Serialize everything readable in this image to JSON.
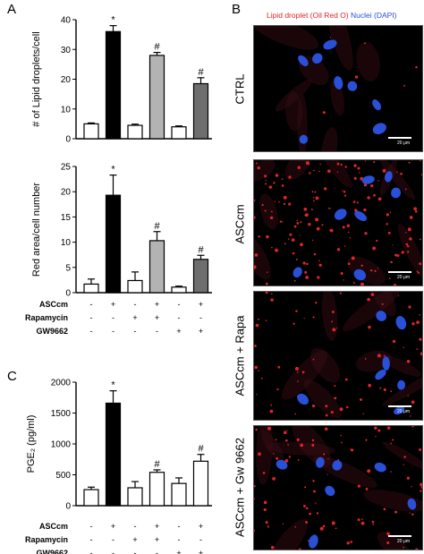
{
  "panels": {
    "a": "A",
    "b": "B",
    "c": "C"
  },
  "legend": {
    "lipid": "Lipid droplet  (Oil Red O)",
    "nuclei": "Nuclei (DAPI)",
    "lipid_color": "#e0242a",
    "nuclei_color": "#2a4fd8"
  },
  "micrographs": [
    {
      "label": "CTRL",
      "scale": "20 μm"
    },
    {
      "label": "ASCcm",
      "scale": "20 μm"
    },
    {
      "label": "ASCcm + Rapa",
      "scale": "20 μm"
    },
    {
      "label": "ASCcm + Gw 9662",
      "scale": "20 μm"
    }
  ],
  "treatments": {
    "rows": [
      {
        "name": "ASCcm",
        "signs": [
          "-",
          "+",
          "-",
          "+",
          "-",
          "+"
        ]
      },
      {
        "name": "Rapamycin",
        "signs": [
          "-",
          "-",
          "+",
          "+",
          "-",
          "-"
        ]
      },
      {
        "name": "GW9662",
        "signs": [
          "-",
          "-",
          "-",
          "-",
          "+",
          "+"
        ]
      }
    ]
  },
  "chart_data": [
    {
      "type": "bar",
      "ylabel": "# of Lipid droplets/cell",
      "ylim": [
        0,
        40
      ],
      "yticks": [
        0,
        10,
        20,
        30,
        40
      ],
      "values": [
        5,
        36,
        4.5,
        28,
        4,
        18.5
      ],
      "errors": [
        0.3,
        2,
        0.4,
        1,
        0.3,
        2
      ],
      "fills": [
        "#ffffff",
        "#000000",
        "#ffffff",
        "#b3b3b3",
        "#ffffff",
        "#6e6e6e"
      ],
      "marks": [
        "",
        "*",
        "",
        "#",
        "",
        "#"
      ]
    },
    {
      "type": "bar",
      "ylabel": "Red area/cell number",
      "ylim": [
        0,
        25
      ],
      "yticks": [
        0,
        5,
        10,
        15,
        20,
        25
      ],
      "values": [
        1.7,
        19.3,
        2.4,
        10.3,
        1.1,
        6.6
      ],
      "errors": [
        1,
        4,
        1.7,
        1.8,
        0.2,
        0.8
      ],
      "fills": [
        "#ffffff",
        "#000000",
        "#ffffff",
        "#b3b3b3",
        "#ffffff",
        "#6e6e6e"
      ],
      "marks": [
        "",
        "*",
        "",
        "#",
        "",
        "#"
      ]
    },
    {
      "type": "bar",
      "ylabel": "PGE₂ (pg/ml)",
      "ylim": [
        0,
        2000
      ],
      "yticks": [
        0,
        500,
        1000,
        1500,
        2000
      ],
      "values": [
        260,
        1660,
        290,
        540,
        360,
        720
      ],
      "errors": [
        40,
        200,
        100,
        40,
        90,
        110
      ],
      "fills": [
        "#ffffff",
        "#000000",
        "#ffffff",
        "#ffffff",
        "#ffffff",
        "#ffffff"
      ],
      "marks": [
        "",
        "*",
        "",
        "#",
        "",
        "#"
      ]
    }
  ]
}
